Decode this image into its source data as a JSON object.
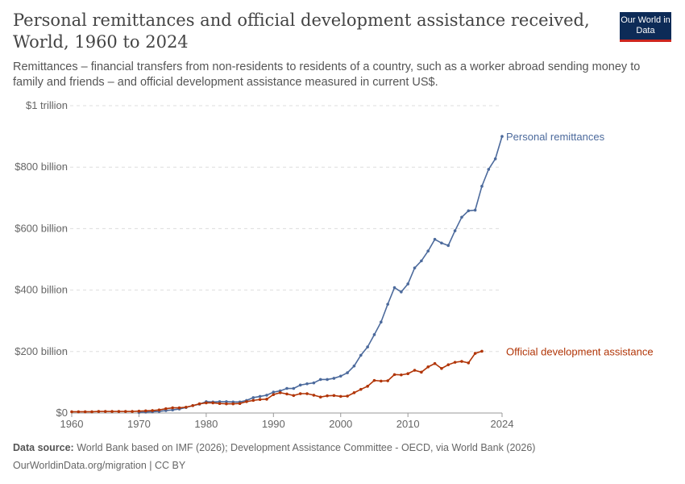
{
  "title": "Personal remittances and official development assistance received, World, 1960 to 2024",
  "subtitle": "Remittances – financial transfers from non-residents to residents of a country, such as a worker abroad sending money to family and friends – and official development assistance measured in current US$.",
  "logo": "Our World in Data",
  "source_label": "Data source:",
  "source": "World Bank based on IMF (2026); Development Assistance Committee - OECD, via World Bank (2026)",
  "url": "OurWorldinData.org/migration | CC BY",
  "chart_data": {
    "type": "line",
    "title": "Personal remittances and official development assistance received, World, 1960 to 2024",
    "xlim": [
      1960,
      2024
    ],
    "ylim": [
      0,
      1000
    ],
    "xticks": [
      1960,
      1970,
      1980,
      1990,
      2000,
      2010,
      2024
    ],
    "yticks": [
      {
        "v": 0,
        "label": "$0"
      },
      {
        "v": 200,
        "label": "$200 billion"
      },
      {
        "v": 400,
        "label": "$400 billion"
      },
      {
        "v": 600,
        "label": "$600 billion"
      },
      {
        "v": 800,
        "label": "$800 billion"
      },
      {
        "v": 1000,
        "label": "$1 trillion"
      }
    ],
    "grid": true,
    "legend": "inline-right",
    "series": [
      {
        "name": "Personal remittances",
        "color": "#4c6a9c",
        "start": 1970,
        "values": [
          2,
          3,
          4,
          5,
          8,
          10,
          13,
          18,
          24,
          29,
          37,
          36,
          37,
          37,
          36,
          36,
          41,
          50,
          54,
          58,
          68,
          72,
          80,
          80,
          91,
          95,
          98,
          109,
          109,
          113,
          120,
          131,
          153,
          188,
          215,
          255,
          296,
          354,
          408,
          394,
          420,
          472,
          495,
          527,
          565,
          553,
          545,
          593,
          637,
          658,
          660,
          738,
          793,
          827,
          900
        ]
      },
      {
        "name": "Official development assistance",
        "color": "#b13507",
        "start": 1960,
        "values": [
          4,
          4,
          4,
          4,
          5,
          5,
          5,
          5,
          5,
          5,
          6,
          7,
          8,
          10,
          14,
          17,
          17,
          19,
          24,
          30,
          33,
          33,
          31,
          30,
          30,
          31,
          37,
          41,
          44,
          45,
          60,
          66,
          62,
          57,
          63,
          63,
          58,
          52,
          56,
          57,
          54,
          55,
          66,
          77,
          87,
          106,
          104,
          105,
          125,
          124,
          128,
          139,
          133,
          150,
          161,
          145,
          157,
          165,
          168,
          163,
          194,
          201
        ]
      }
    ]
  }
}
